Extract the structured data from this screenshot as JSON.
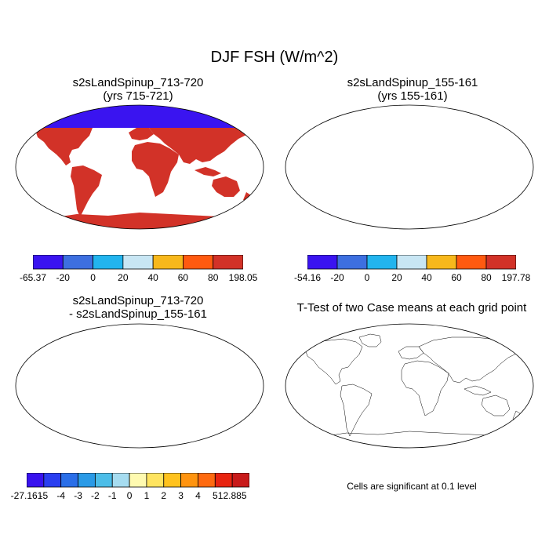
{
  "main_title": "DJF FSH (W/m^2)",
  "panels": [
    {
      "id": "case1",
      "title_line1": "s2sLandSpinup_713-720",
      "title_line2": "(yrs 715-721)"
    },
    {
      "id": "case2",
      "title_line1": "s2sLandSpinup_155-161",
      "title_line2": "(yrs 155-161)"
    },
    {
      "id": "diff",
      "title_line1": "s2sLandSpinup_713-720",
      "title_line2": "- s2sLandSpinup_155-161"
    },
    {
      "id": "ttest",
      "title_line1": "T-Test of two Case means at each grid point"
    }
  ],
  "colorbars": {
    "case1": {
      "labels": [
        "-65.37",
        "-20",
        "0",
        "20",
        "40",
        "60",
        "80",
        "198.05"
      ],
      "colors": [
        "#3a14f0",
        "#3d6fe0",
        "#22b4ee",
        "#c8e6f4",
        "#f7b81c",
        "#ff5a10",
        "#d23228"
      ]
    },
    "case2": {
      "labels": [
        "-54.16",
        "-20",
        "0",
        "20",
        "40",
        "60",
        "80",
        "197.78"
      ],
      "colors": [
        "#3a14f0",
        "#3d6fe0",
        "#22b4ee",
        "#c8e6f4",
        "#f7b81c",
        "#ff5a10",
        "#d23228"
      ]
    },
    "diff": {
      "labels": [
        "-27.161",
        "-5",
        "-4",
        "-3",
        "-2",
        "-1",
        "0",
        "1",
        "2",
        "3",
        "4",
        "5",
        "12.885"
      ],
      "colors": [
        "#3812ee",
        "#2a3ef0",
        "#2a6ee8",
        "#2a9ae6",
        "#4cbde8",
        "#a6dcf0",
        "#fffab0",
        "#ffe460",
        "#ffc21e",
        "#ff9410",
        "#ff6a10",
        "#e82410",
        "#c81a1a"
      ]
    }
  },
  "significance_note": "Cells are significant at 0.1 level",
  "palette": {
    "ocean": "#ffffff",
    "coast": "#000000",
    "significant": "#e81010"
  }
}
